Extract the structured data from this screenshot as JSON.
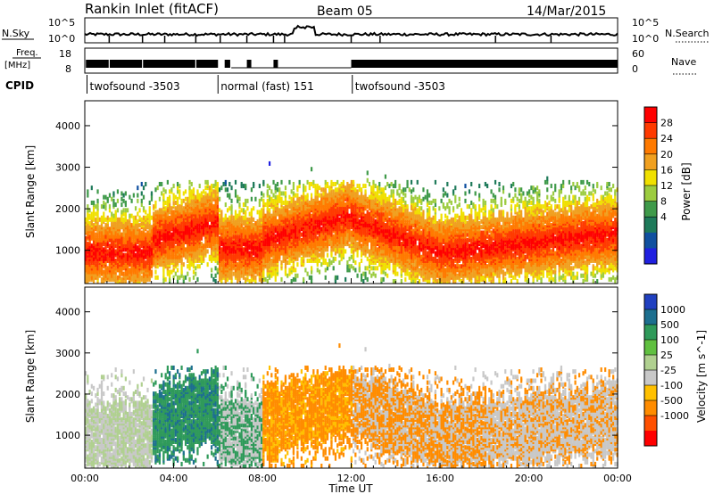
{
  "header": {
    "station": "Rankin Inlet (fitACF)",
    "beam": "Beam 05",
    "date": "14/Mar/2015"
  },
  "noise_panel": {
    "left_label": "N.Sky",
    "right_label": "N.Search",
    "left_ticks": [
      "10^5",
      "10^0"
    ],
    "right_ticks": [
      "10^5",
      "10^0"
    ]
  },
  "freq_panel": {
    "left_label": "Freq.",
    "left_unit": "[MHz]",
    "right_label": "Nave",
    "left_ticks": [
      "18",
      "8"
    ],
    "right_ticks": [
      "60",
      "0"
    ]
  },
  "cpid": {
    "label": "CPID",
    "segments": [
      {
        "name": "twofsound -3503",
        "start_hour": 0.1
      },
      {
        "name": "normal (fast) 151",
        "start_hour": 6.0
      },
      {
        "name": "twofsound -3503",
        "start_hour": 12.05
      }
    ]
  },
  "chart_data": [
    {
      "type": "heatmap",
      "quantity": "Power",
      "ylabel": "Slant Range [km]",
      "xlabel": "Time UT",
      "yticks": [
        "1000",
        "2000",
        "3000",
        "4000"
      ],
      "ylim": [
        200,
        4600
      ],
      "xlim": [
        0,
        24
      ],
      "colorbar_label": "Power [dB]",
      "colorbar_ticks": [
        "28",
        "24",
        "20",
        "16",
        "12",
        "8",
        "4"
      ],
      "colorbar_colors": [
        "#ff0000",
        "#ff3a00",
        "#ff7a00",
        "#f0a020",
        "#f0e000",
        "#9ccc40",
        "#3f9a4a",
        "#1e7a5a",
        "#1050a0",
        "#2020e0"
      ]
    },
    {
      "type": "heatmap",
      "quantity": "Velocity",
      "ylabel": "Slant Range [km]",
      "xlabel": "Time UT",
      "yticks": [
        "1000",
        "2000",
        "3000",
        "4000"
      ],
      "ylim": [
        200,
        4600
      ],
      "xlim": [
        0,
        24
      ],
      "xticks": [
        "00:00",
        "04:00",
        "08:00",
        "12:00",
        "16:00",
        "20:00",
        "00:00"
      ],
      "colorbar_label": "Velocity [m s^-1]",
      "colorbar_ticks": [
        "1000",
        "500",
        "100",
        "25",
        "-25",
        "-100",
        "-500",
        "-1000"
      ],
      "colorbar_colors": [
        "#2040c0",
        "#1d6f8f",
        "#2f9a5a",
        "#60c040",
        "#b0d090",
        "#c8c8c8",
        "#ffc000",
        "#ff8c00",
        "#ff5000",
        "#ff0000"
      ]
    }
  ]
}
